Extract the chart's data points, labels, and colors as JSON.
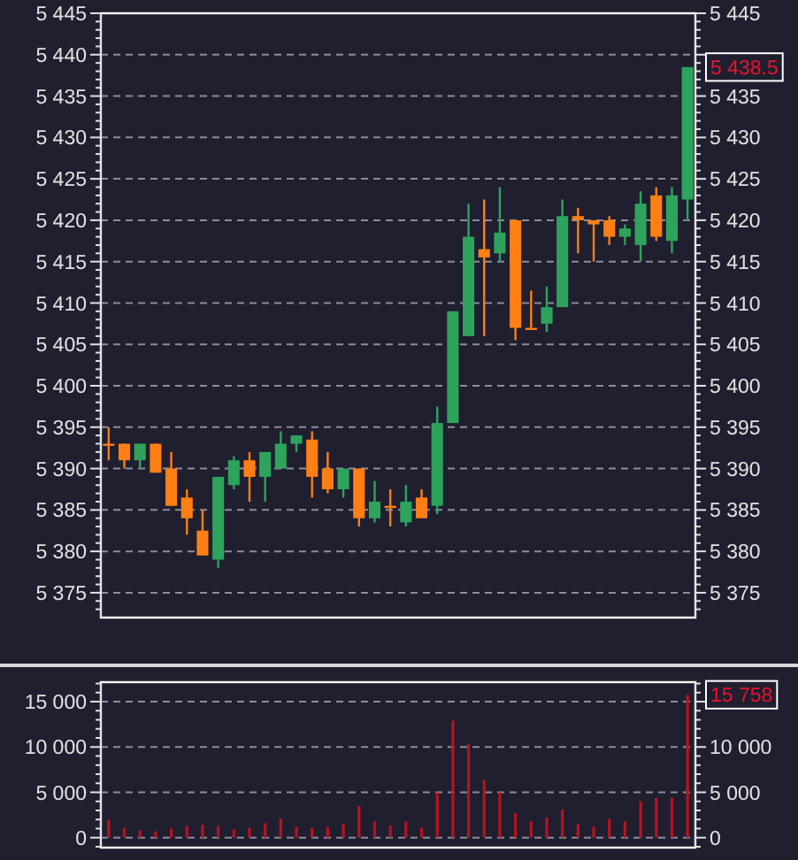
{
  "chart_data": [
    {
      "type": "candlestick",
      "categories": [
        null,
        null,
        null,
        null,
        null,
        null,
        null,
        null,
        null,
        null,
        null,
        null,
        null,
        null,
        null,
        null,
        null,
        null,
        null,
        null,
        null,
        null,
        null,
        null,
        null,
        null,
        null,
        null,
        null,
        null,
        null,
        null,
        null,
        null,
        null,
        null,
        null,
        null
      ],
      "ohlc": [
        [
          5393,
          5395,
          5391,
          5393
        ],
        [
          5393,
          5393,
          5390,
          5391
        ],
        [
          5391,
          5393,
          5390,
          5393
        ],
        [
          5393,
          5393,
          5389.5,
          5389.5
        ],
        [
          5390,
          5392,
          5385.5,
          5385.5
        ],
        [
          5386.5,
          5387.5,
          5382,
          5384
        ],
        [
          5382.5,
          5385,
          5379.5,
          5379.5
        ],
        [
          5379,
          5389,
          5378,
          5389
        ],
        [
          5388,
          5391.5,
          5387.5,
          5391
        ],
        [
          5391,
          5392,
          5386,
          5389
        ],
        [
          5389,
          5392,
          5386,
          5392
        ],
        [
          5390,
          5394.5,
          5390,
          5393
        ],
        [
          5393,
          5394,
          5392,
          5394
        ],
        [
          5393.5,
          5394.5,
          5386.5,
          5389
        ],
        [
          5390,
          5392,
          5387,
          5387.5
        ],
        [
          5387.5,
          5390,
          5386.5,
          5390
        ],
        [
          5390,
          5390,
          5383,
          5384
        ],
        [
          5384,
          5388.5,
          5383.5,
          5386
        ],
        [
          5385.5,
          5387.5,
          5383,
          5385.5
        ],
        [
          5383.5,
          5388,
          5383,
          5386
        ],
        [
          5386.5,
          5387.5,
          5384,
          5384
        ],
        [
          5385.5,
          5397.5,
          5384.5,
          5395.5
        ],
        [
          5395.5,
          5409,
          5395.5,
          5409
        ],
        [
          5406,
          5422,
          5406,
          5418
        ],
        [
          5416.5,
          5422.5,
          5406,
          5415.5
        ],
        [
          5416,
          5424,
          5415,
          5418.5
        ],
        [
          5420,
          5420,
          5405.5,
          5407
        ],
        [
          5407,
          5411.5,
          5407,
          5407
        ],
        [
          5407.5,
          5412,
          5406.5,
          5409.5
        ],
        [
          5409.5,
          5422.5,
          5409.5,
          5420.5
        ],
        [
          5420.5,
          5421.5,
          5416,
          5420
        ],
        [
          5420,
          5420,
          5415,
          5419.5
        ],
        [
          5420,
          5420.5,
          5417,
          5418
        ],
        [
          5418,
          5419.5,
          5417,
          5419
        ],
        [
          5417,
          5423.5,
          5415,
          5422
        ],
        [
          5423,
          5424,
          5417.5,
          5418
        ],
        [
          5417.5,
          5424,
          5416,
          5423
        ],
        [
          5422.5,
          5438.5,
          5420,
          5438.5
        ]
      ],
      "colors": [
        "#ff7f14",
        "#ff7f14",
        "#2ea35c",
        "#ff7f14",
        "#ff7f14",
        "#ff7f14",
        "#ff7f14",
        "#2ea35c",
        "#2ea35c",
        "#ff7f14",
        "#2ea35c",
        "#2ea35c",
        "#2ea35c",
        "#ff7f14",
        "#ff7f14",
        "#2ea35c",
        "#ff7f14",
        "#2ea35c",
        "#ff7f14",
        "#2ea35c",
        "#ff7f14",
        "#2ea35c",
        "#2ea35c",
        "#2ea35c",
        "#ff7f14",
        "#2ea35c",
        "#ff7f14",
        "#ff7f14",
        "#2ea35c",
        "#2ea35c",
        "#ff7f14",
        "#ff7f14",
        "#ff7f14",
        "#2ea35c",
        "#2ea35c",
        "#ff7f14",
        "#2ea35c",
        "#2ea35c"
      ],
      "ylim": [
        5372,
        5445
      ],
      "yticks": [
        {
          "value": 5373,
          "label": null
        },
        {
          "value": 5374,
          "label": null
        },
        {
          "value": 5375,
          "label": "5 375"
        },
        {
          "value": 5376,
          "label": null
        },
        {
          "value": 5377,
          "label": null
        },
        {
          "value": 5378,
          "label": null
        },
        {
          "value": 5379,
          "label": null
        },
        {
          "value": 5380,
          "label": "5 380"
        },
        {
          "value": 5381,
          "label": null
        },
        {
          "value": 5382,
          "label": null
        },
        {
          "value": 5383,
          "label": null
        },
        {
          "value": 5384,
          "label": null
        },
        {
          "value": 5385,
          "label": "5 385"
        },
        {
          "value": 5386,
          "label": null
        },
        {
          "value": 5387,
          "label": null
        },
        {
          "value": 5388,
          "label": null
        },
        {
          "value": 5389,
          "label": null
        },
        {
          "value": 5390,
          "label": "5 390"
        },
        {
          "value": 5391,
          "label": null
        },
        {
          "value": 5392,
          "label": null
        },
        {
          "value": 5393,
          "label": null
        },
        {
          "value": 5394,
          "label": null
        },
        {
          "value": 5395,
          "label": "5 395"
        },
        {
          "value": 5396,
          "label": null
        },
        {
          "value": 5397,
          "label": null
        },
        {
          "value": 5398,
          "label": null
        },
        {
          "value": 5399,
          "label": null
        },
        {
          "value": 5400,
          "label": "5 400"
        },
        {
          "value": 5401,
          "label": null
        },
        {
          "value": 5402,
          "label": null
        },
        {
          "value": 5403,
          "label": null
        },
        {
          "value": 5404,
          "label": null
        },
        {
          "value": 5405,
          "label": "5 405"
        },
        {
          "value": 5406,
          "label": null
        },
        {
          "value": 5407,
          "label": null
        },
        {
          "value": 5408,
          "label": null
        },
        {
          "value": 5409,
          "label": null
        },
        {
          "value": 5410,
          "label": "5 410"
        },
        {
          "value": 5411,
          "label": null
        },
        {
          "value": 5412,
          "label": null
        },
        {
          "value": 5413,
          "label": null
        },
        {
          "value": 5414,
          "label": null
        },
        {
          "value": 5415,
          "label": "5 415"
        },
        {
          "value": 5416,
          "label": null
        },
        {
          "value": 5417,
          "label": null
        },
        {
          "value": 5418,
          "label": null
        },
        {
          "value": 5419,
          "label": null
        },
        {
          "value": 5420,
          "label": "5 420"
        },
        {
          "value": 5421,
          "label": null
        },
        {
          "value": 5422,
          "label": null
        },
        {
          "value": 5423,
          "label": null
        },
        {
          "value": 5424,
          "label": null
        },
        {
          "value": 5425,
          "label": "5 425"
        },
        {
          "value": 5426,
          "label": null
        },
        {
          "value": 5427,
          "label": null
        },
        {
          "value": 5428,
          "label": null
        },
        {
          "value": 5429,
          "label": null
        },
        {
          "value": 5430,
          "label": "5 430"
        },
        {
          "value": 5431,
          "label": null
        },
        {
          "value": 5432,
          "label": null
        },
        {
          "value": 5433,
          "label": null
        },
        {
          "value": 5434,
          "label": null
        },
        {
          "value": 5435,
          "label": "5 435"
        },
        {
          "value": 5436,
          "label": null
        },
        {
          "value": 5437,
          "label": null
        },
        {
          "value": 5438,
          "label": null
        },
        {
          "value": 5439,
          "label": null
        },
        {
          "value": 5440,
          "label": "5 440"
        },
        {
          "value": 5441,
          "label": null
        },
        {
          "value": 5442,
          "label": null
        },
        {
          "value": 5443,
          "label": null
        },
        {
          "value": 5444,
          "label": null
        },
        {
          "value": 5445,
          "label": "5 445"
        }
      ],
      "y2lim": [
        5372,
        5445
      ],
      "y2ticks": [
        {
          "value": 5373,
          "label": null
        },
        {
          "value": 5374,
          "label": null
        },
        {
          "value": 5375,
          "label": "5 375"
        },
        {
          "value": 5376,
          "label": null
        },
        {
          "value": 5377,
          "label": null
        },
        {
          "value": 5378,
          "label": null
        },
        {
          "value": 5379,
          "label": null
        },
        {
          "value": 5380,
          "label": "5 380"
        },
        {
          "value": 5381,
          "label": null
        },
        {
          "value": 5382,
          "label": null
        },
        {
          "value": 5383,
          "label": null
        },
        {
          "value": 5384,
          "label": null
        },
        {
          "value": 5385,
          "label": "5 385"
        },
        {
          "value": 5386,
          "label": null
        },
        {
          "value": 5387,
          "label": null
        },
        {
          "value": 5388,
          "label": null
        },
        {
          "value": 5389,
          "label": null
        },
        {
          "value": 5390,
          "label": "5 390"
        },
        {
          "value": 5391,
          "label": null
        },
        {
          "value": 5392,
          "label": null
        },
        {
          "value": 5393,
          "label": null
        },
        {
          "value": 5394,
          "label": null
        },
        {
          "value": 5395,
          "label": "5 395"
        },
        {
          "value": 5396,
          "label": null
        },
        {
          "value": 5397,
          "label": null
        },
        {
          "value": 5398,
          "label": null
        },
        {
          "value": 5399,
          "label": null
        },
        {
          "value": 5400,
          "label": "5 400"
        },
        {
          "value": 5401,
          "label": null
        },
        {
          "value": 5402,
          "label": null
        },
        {
          "value": 5403,
          "label": null
        },
        {
          "value": 5404,
          "label": null
        },
        {
          "value": 5405,
          "label": "5 405"
        },
        {
          "value": 5406,
          "label": null
        },
        {
          "value": 5407,
          "label": null
        },
        {
          "value": 5408,
          "label": null
        },
        {
          "value": 5409,
          "label": null
        },
        {
          "value": 5410,
          "label": "5 410"
        },
        {
          "value": 5411,
          "label": null
        },
        {
          "value": 5412,
          "label": null
        },
        {
          "value": 5413,
          "label": null
        },
        {
          "value": 5414,
          "label": null
        },
        {
          "value": 5415,
          "label": "5 415"
        },
        {
          "value": 5416,
          "label": null
        },
        {
          "value": 5417,
          "label": null
        },
        {
          "value": 5418,
          "label": null
        },
        {
          "value": 5419,
          "label": null
        },
        {
          "value": 5420,
          "label": "5 420"
        },
        {
          "value": 5421,
          "label": null
        },
        {
          "value": 5422,
          "label": null
        },
        {
          "value": 5423,
          "label": null
        },
        {
          "value": 5424,
          "label": null
        },
        {
          "value": 5425,
          "label": "5 425"
        },
        {
          "value": 5426,
          "label": null
        },
        {
          "value": 5427,
          "label": null
        },
        {
          "value": 5428,
          "label": null
        },
        {
          "value": 5429,
          "label": null
        },
        {
          "value": 5430,
          "label": "5 430"
        },
        {
          "value": 5431,
          "label": null
        },
        {
          "value": 5432,
          "label": null
        },
        {
          "value": 5433,
          "label": null
        },
        {
          "value": 5434,
          "label": null
        },
        {
          "value": 5435,
          "label": "5 435"
        },
        {
          "value": 5436,
          "label": null
        },
        {
          "value": 5437,
          "label": null
        },
        {
          "value": 5438,
          "label": null
        },
        {
          "value": 5439,
          "label": null
        },
        {
          "value": 5440,
          "label": null
        },
        {
          "value": 5441,
          "label": null
        },
        {
          "value": 5442,
          "label": null
        },
        {
          "value": 5443,
          "label": null
        },
        {
          "value": 5444,
          "label": null
        },
        {
          "value": 5445,
          "label": "5 445"
        }
      ],
      "grid": "y",
      "tick_labels": "y",
      "annotations": [
        "5 438.5"
      ]
    },
    {
      "type": "bar",
      "categories": [
        null,
        null,
        null,
        null,
        null,
        null,
        null,
        null,
        null,
        null,
        null,
        null,
        null,
        null,
        null,
        null,
        null,
        null,
        null,
        null,
        null,
        null,
        null,
        null,
        null,
        null,
        null,
        null,
        null,
        null,
        null,
        null,
        null,
        null,
        null,
        null,
        null,
        null
      ],
      "values": [
        2000,
        1100,
        800,
        700,
        1000,
        1300,
        1400,
        1300,
        900,
        1100,
        1600,
        2100,
        1200,
        1100,
        1200,
        1500,
        3500,
        1800,
        1300,
        1800,
        1100,
        5000,
        12900,
        10300,
        6400,
        5000,
        2700,
        1800,
        2200,
        3100,
        1500,
        1200,
        2100,
        1800,
        4000,
        4400,
        4400,
        15758
      ],
      "color": "#b8121f",
      "ylim": [
        -1100,
        17150
      ],
      "yticks": [
        {
          "value": -1000,
          "label": null
        },
        0,
        {
          "value": 1000,
          "label": null
        },
        {
          "value": 2000,
          "label": null
        },
        {
          "value": 3000,
          "label": null
        },
        {
          "value": 4000,
          "label": null
        },
        {
          "value": 5000,
          "label": "5 000"
        },
        {
          "value": 6000,
          "label": null
        },
        {
          "value": 7000,
          "label": null
        },
        {
          "value": 8000,
          "label": null
        },
        {
          "value": 9000,
          "label": null
        },
        {
          "value": 10000,
          "label": "10 000"
        },
        {
          "value": 11000,
          "label": null
        },
        {
          "value": 12000,
          "label": null
        },
        {
          "value": 13000,
          "label": null
        },
        {
          "value": 14000,
          "label": null
        },
        {
          "value": 15000,
          "label": "15 000"
        },
        {
          "value": 16000,
          "label": null
        },
        {
          "value": 17000,
          "label": null
        }
      ],
      "y2lim": [
        -1100,
        17150
      ],
      "y2ticks": [
        {
          "value": -1000,
          "label": null
        },
        0,
        {
          "value": 1000,
          "label": null
        },
        {
          "value": 2000,
          "label": null
        },
        {
          "value": 3000,
          "label": null
        },
        {
          "value": 4000,
          "label": null
        },
        {
          "value": 5000,
          "label": "5 000"
        },
        {
          "value": 6000,
          "label": null
        },
        {
          "value": 7000,
          "label": null
        },
        {
          "value": 8000,
          "label": null
        },
        {
          "value": 9000,
          "label": null
        },
        {
          "value": 10000,
          "label": "10 000"
        },
        {
          "value": 11000,
          "label": null
        },
        {
          "value": 12000,
          "label": null
        },
        {
          "value": 13000,
          "label": null
        },
        {
          "value": 14000,
          "label": null
        },
        {
          "value": 15000,
          "label": null
        },
        {
          "value": 16000,
          "label": null
        },
        {
          "value": 17000,
          "label": null
        }
      ],
      "grid": "y",
      "tick_labels": "y",
      "annotations": [
        "15 758"
      ]
    }
  ]
}
